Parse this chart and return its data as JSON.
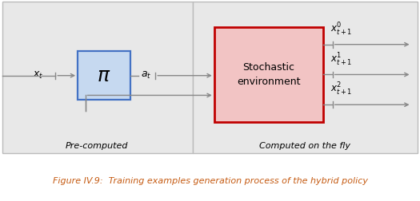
{
  "fig_width": 5.25,
  "fig_height": 2.52,
  "dpi": 100,
  "bg_color": "#ffffff",
  "outer_box_bg": "#e8e8e8",
  "outer_box_edge": "#bbbbbb",
  "pi_box_bg": "#c6d9f0",
  "pi_box_edge": "#4472c4",
  "stoch_box_bg": "#f2c4c4",
  "stoch_box_edge": "#c00000",
  "arrow_color": "#888888",
  "text_color": "#000000",
  "caption_color": "#c55a11",
  "caption_text": "Figure IV.9:  Training examples generation process of the hybrid policy",
  "precomputed_label": "Pre-computed",
  "onthefly_label": "Computed on the fly",
  "stoch_label": "Stochastic\nenvironment"
}
